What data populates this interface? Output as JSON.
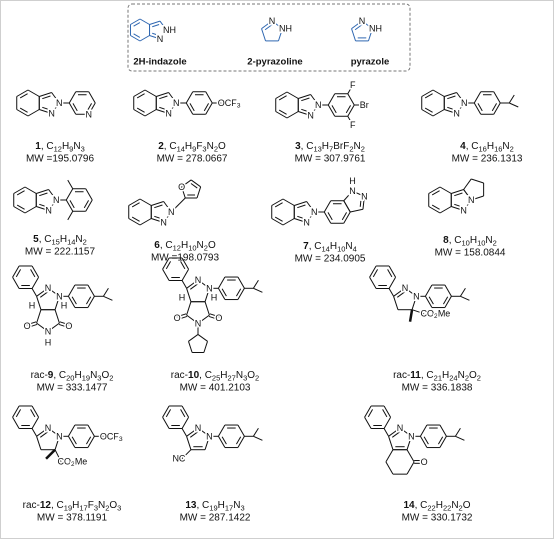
{
  "scaffolds": [
    {
      "name": "2H-indazole",
      "atoms": [
        "N",
        "NH"
      ]
    },
    {
      "name": "2-pyrazoline",
      "atoms": [
        "N",
        "NH"
      ]
    },
    {
      "name": "pyrazole",
      "atoms": [
        "N",
        "NH"
      ]
    }
  ],
  "compounds": [
    {
      "id": "1",
      "formula": ", C12H9N3",
      "mw": "MW =195.0796",
      "atoms": [
        "N",
        "N",
        "N"
      ]
    },
    {
      "id": "2",
      "formula": ", C14H9F3N2O",
      "mw": "MW = 278.0667",
      "atoms": [
        "N",
        "N",
        "OCF3"
      ]
    },
    {
      "id": "3",
      "formula": ", C13H7BrF2N2",
      "mw": "MW = 307.9761",
      "atoms": [
        "N",
        "N",
        "F",
        "Br",
        "F"
      ]
    },
    {
      "id": "4",
      "formula": ", C16H16N2",
      "mw": "MW = 236.1313",
      "atoms": [
        "N",
        "N"
      ]
    },
    {
      "id": "5",
      "formula": ", C15H14N2",
      "mw": "MW = 222.1157",
      "atoms": [
        "N",
        "N"
      ]
    },
    {
      "id": "6",
      "formula": ", C12H10N2O",
      "mw": "MW =198.0793",
      "atoms": [
        "N",
        "N",
        "O"
      ]
    },
    {
      "id": "7",
      "formula": ", C14H10N4",
      "mw": "MW = 234.0905",
      "atoms": [
        "N",
        "N",
        "N",
        "N",
        "H"
      ]
    },
    {
      "id": "8",
      "formula": ", C10H10N2",
      "mw": "MW = 158.0844",
      "atoms": [
        "N",
        "N"
      ]
    },
    {
      "prefix": "rac-",
      "id": "9",
      "formula": ", C20H19N3O2",
      "mw": "MW = 333.1477",
      "atoms": [
        "N",
        "N",
        "O",
        "N",
        "O",
        "H",
        "H",
        "H"
      ]
    },
    {
      "prefix": "rac-",
      "id": "10",
      "formula": ", C25H27N3O2",
      "mw": "MW = 401.2103",
      "atoms": [
        "N",
        "N",
        "O",
        "N",
        "O",
        "H",
        "H"
      ]
    },
    {
      "prefix": "rac-",
      "id": "11",
      "formula": ", C21H24N2O2",
      "mw": "MW = 336.1838",
      "atoms": [
        "N",
        "N",
        "CO2Me"
      ]
    },
    {
      "prefix": "rac-",
      "id": "12",
      "formula": ", C19H17F3N2O3",
      "mw": "MW = 378.1191",
      "atoms": [
        "N",
        "N",
        "OCF3",
        "CO2Me"
      ]
    },
    {
      "id": "13",
      "formula": ", C19H17N3",
      "mw": "MW = 287.1422",
      "atoms": [
        "N",
        "N",
        "NC"
      ]
    },
    {
      "id": "14",
      "formula": ", C22H22N2O",
      "mw": "MW = 330.1732",
      "atoms": [
        "N",
        "N",
        "O"
      ]
    }
  ]
}
